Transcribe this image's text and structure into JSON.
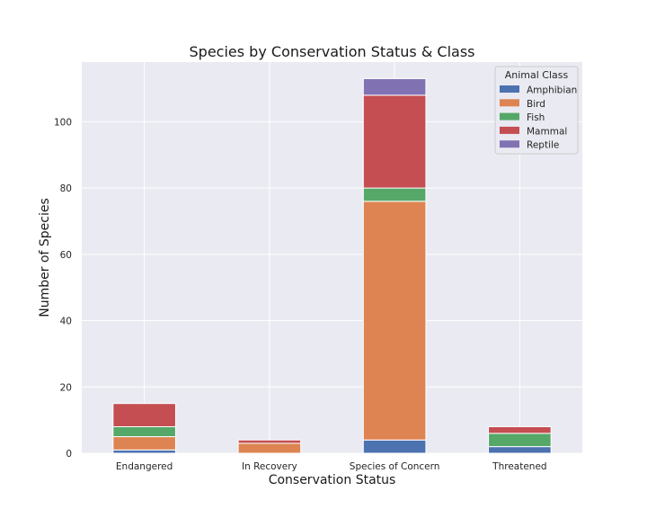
{
  "chart_data": {
    "type": "bar",
    "stacked": true,
    "title": "Species by Conservation Status & Class",
    "xlabel": "Conservation Status",
    "ylabel": "Number of Species",
    "categories": [
      "Endangered",
      "In Recovery",
      "Species of Concern",
      "Threatened"
    ],
    "ylim": [
      0,
      118
    ],
    "yticks": [
      0,
      20,
      40,
      60,
      80,
      100
    ],
    "grid": true,
    "legend": {
      "title": "Animal Class",
      "position": "top-right"
    },
    "series": [
      {
        "name": "Amphibian",
        "color": "#4c72b0",
        "values": [
          1,
          0,
          4,
          2
        ]
      },
      {
        "name": "Bird",
        "color": "#dd8452",
        "values": [
          4,
          3,
          72,
          0
        ]
      },
      {
        "name": "Fish",
        "color": "#55a868",
        "values": [
          3,
          0,
          4,
          4
        ]
      },
      {
        "name": "Mammal",
        "color": "#c44e52",
        "values": [
          7,
          1,
          28,
          2
        ]
      },
      {
        "name": "Reptile",
        "color": "#8172b3",
        "values": [
          0,
          0,
          5,
          0
        ]
      }
    ]
  }
}
